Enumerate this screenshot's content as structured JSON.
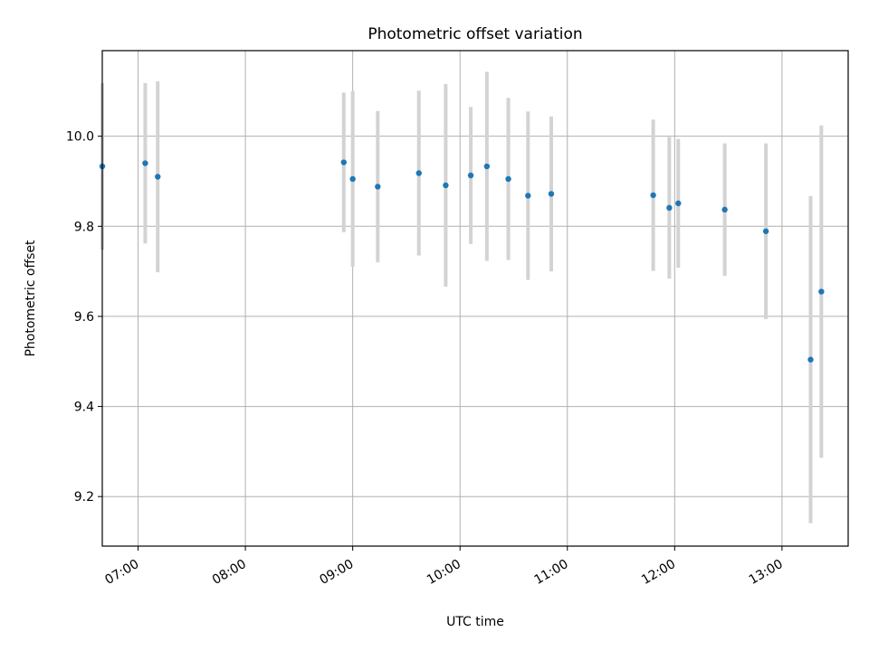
{
  "chart_data": {
    "type": "scatter",
    "title": "Photometric offset variation",
    "xlabel": "UTC time",
    "ylabel": "Photometric offset",
    "x_ticks": [
      "07:00",
      "08:00",
      "09:00",
      "10:00",
      "11:00",
      "12:00",
      "13:00"
    ],
    "y_ticks": [
      "9.2",
      "9.4",
      "9.6",
      "9.8",
      "10.0"
    ],
    "xlim": [
      "06:40",
      "13:37"
    ],
    "ylim": [
      9.09,
      10.19
    ],
    "grid": true,
    "series": [
      {
        "points": [
          {
            "x": "06:40",
            "y": 9.933,
            "err": 0.185
          },
          {
            "x": "07:04",
            "y": 9.94,
            "err": 0.178
          },
          {
            "x": "07:11",
            "y": 9.91,
            "err": 0.212
          },
          {
            "x": "08:55",
            "y": 9.942,
            "err": 0.155
          },
          {
            "x": "09:00",
            "y": 9.905,
            "err": 0.195
          },
          {
            "x": "09:14",
            "y": 9.888,
            "err": 0.168
          },
          {
            "x": "09:37",
            "y": 9.918,
            "err": 0.183
          },
          {
            "x": "09:52",
            "y": 9.891,
            "err": 0.225
          },
          {
            "x": "10:06",
            "y": 9.913,
            "err": 0.152
          },
          {
            "x": "10:15",
            "y": 9.933,
            "err": 0.21
          },
          {
            "x": "10:27",
            "y": 9.905,
            "err": 0.18
          },
          {
            "x": "10:38",
            "y": 9.868,
            "err": 0.187
          },
          {
            "x": "10:51",
            "y": 9.872,
            "err": 0.172
          },
          {
            "x": "11:48",
            "y": 9.869,
            "err": 0.168
          },
          {
            "x": "11:57",
            "y": 9.841,
            "err": 0.157
          },
          {
            "x": "12:02",
            "y": 9.851,
            "err": 0.143
          },
          {
            "x": "12:28",
            "y": 9.837,
            "err": 0.147
          },
          {
            "x": "12:51",
            "y": 9.789,
            "err": 0.195
          },
          {
            "x": "13:16",
            "y": 9.504,
            "err": 0.363
          },
          {
            "x": "13:22",
            "y": 9.655,
            "err": 0.369
          }
        ]
      }
    ],
    "colors": {
      "point": "#1f77b4",
      "errorbar": "#d3d3d3",
      "grid": "#b0b0b0"
    }
  }
}
